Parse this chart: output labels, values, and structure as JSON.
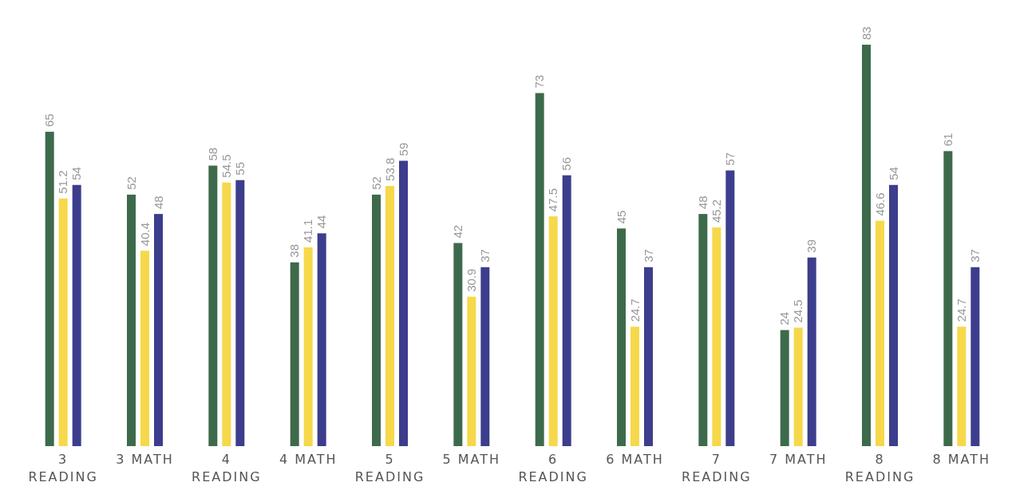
{
  "chart_data": {
    "type": "bar",
    "categories": [
      "3 READING",
      "3 MATH",
      "4 READING",
      "4 MATH",
      "5 READING",
      "5 MATH",
      "6 READING",
      "6 MATH",
      "7 READING",
      "7 MATH",
      "8 READING",
      "8 MATH"
    ],
    "series": [
      {
        "color": "#3e6a4c",
        "values": [
          65,
          52,
          58,
          38,
          52,
          42,
          73,
          45,
          48,
          24,
          83,
          61
        ]
      },
      {
        "color": "#f6d84a",
        "values": [
          51.2,
          40.4,
          54.5,
          41.1,
          53.8,
          30.9,
          47.5,
          24.7,
          45.2,
          24.5,
          46.6,
          24.7
        ]
      },
      {
        "color": "#3c3d8c",
        "values": [
          54,
          48,
          55,
          44,
          59,
          37,
          56,
          37,
          57,
          39,
          54,
          37
        ]
      }
    ],
    "data_labels": true,
    "tick_labels": "x"
  }
}
